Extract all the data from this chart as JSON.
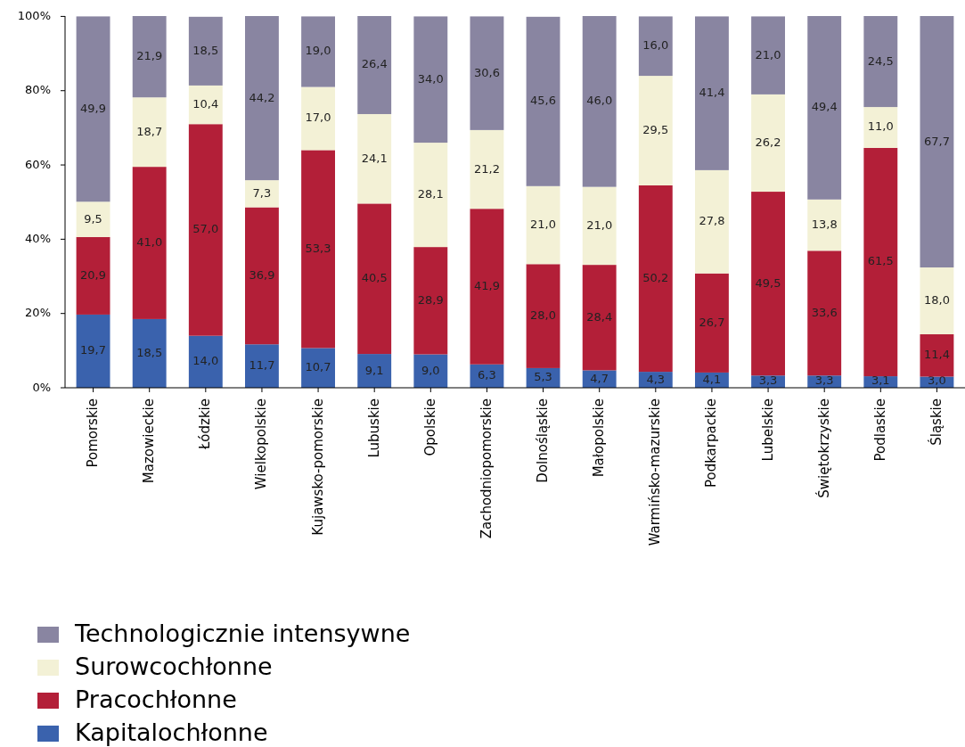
{
  "chart_data": {
    "type": "bar",
    "stacked": true,
    "legend": "bottom",
    "categories": [
      "Pomorskie",
      "Mazowieckie",
      "Łódzkie",
      "Wielkopolskie",
      "Kujawsko-pomorskie",
      "Lubuskie",
      "Opolskie",
      "Zachodniopomorskie",
      "Dolnośląskie",
      "Małopolskie",
      "Warmińsko-mazurskie",
      "Podkarpackie",
      "Lubelskie",
      "Świętokrzyskie",
      "Podlaskie",
      "Śląskie"
    ],
    "ylim": [
      0,
      100.1
    ],
    "yticks": [
      {
        "value": 0,
        "label": "0%"
      },
      {
        "value": 20,
        "label": "20%"
      },
      {
        "value": 40,
        "label": "40%"
      },
      {
        "value": 60,
        "label": "60%"
      },
      {
        "value": 80,
        "label": "80%"
      },
      {
        "value": 100,
        "label": "100%"
      }
    ],
    "series": [
      {
        "name": "Kapitalochłonne",
        "color": "#3a62ad",
        "values": [
          19.7,
          18.5,
          14.0,
          11.7,
          10.7,
          9.1,
          9.0,
          6.3,
          5.3,
          4.7,
          4.3,
          4.1,
          3.3,
          3.3,
          3.1,
          3.0
        ],
        "value_labels": [
          "19,7",
          "18,5",
          "14,0",
          "11,7",
          "10,7",
          "9,1",
          "9,0",
          "6,3",
          "5,3",
          "4,7",
          "4,3",
          "4,1",
          "3,3",
          "3,3",
          "3,1",
          "3,0"
        ]
      },
      {
        "name": "Pracochłonne",
        "color": "#b31f38",
        "values": [
          20.9,
          41.0,
          57.0,
          36.9,
          53.3,
          40.5,
          28.9,
          41.9,
          28.0,
          28.4,
          50.2,
          26.7,
          49.5,
          33.6,
          61.5,
          11.4
        ],
        "value_labels": [
          "20,9",
          "41,0",
          "57,0",
          "36,9",
          "53,3",
          "40,5",
          "28,9",
          "41,9",
          "28,0",
          "28,4",
          "50,2",
          "26,7",
          "49,5",
          "33,6",
          "61,5",
          "11,4"
        ]
      },
      {
        "name": "Surowcochłonne",
        "color": "#f3f1d6",
        "values": [
          9.5,
          18.7,
          10.4,
          7.3,
          17.0,
          24.1,
          28.1,
          21.2,
          21.0,
          21.0,
          29.5,
          27.8,
          26.2,
          13.8,
          11.0,
          18.0
        ],
        "value_labels": [
          "9,5",
          "18,7",
          "10,4",
          "7,3",
          "17,0",
          "24,1",
          "28,1",
          "21,2",
          "21,0",
          "21,0",
          "29,5",
          "27,8",
          "26,2",
          "13,8",
          "11,0",
          "18,0"
        ]
      },
      {
        "name": "Technologicznie intensywne",
        "color": "#8985a1",
        "values": [
          49.9,
          21.9,
          18.5,
          44.2,
          19.0,
          26.4,
          34.0,
          30.6,
          45.6,
          46.0,
          16.0,
          41.4,
          21.0,
          49.4,
          24.5,
          67.7
        ],
        "value_labels": [
          "49,9",
          "21,9",
          "18,5",
          "44,2",
          "19,0",
          "26,4",
          "34,0",
          "30,6",
          "45,6",
          "46,0",
          "16,0",
          "41,4",
          "21,0",
          "49,4",
          "24,5",
          "67,7"
        ]
      }
    ]
  }
}
